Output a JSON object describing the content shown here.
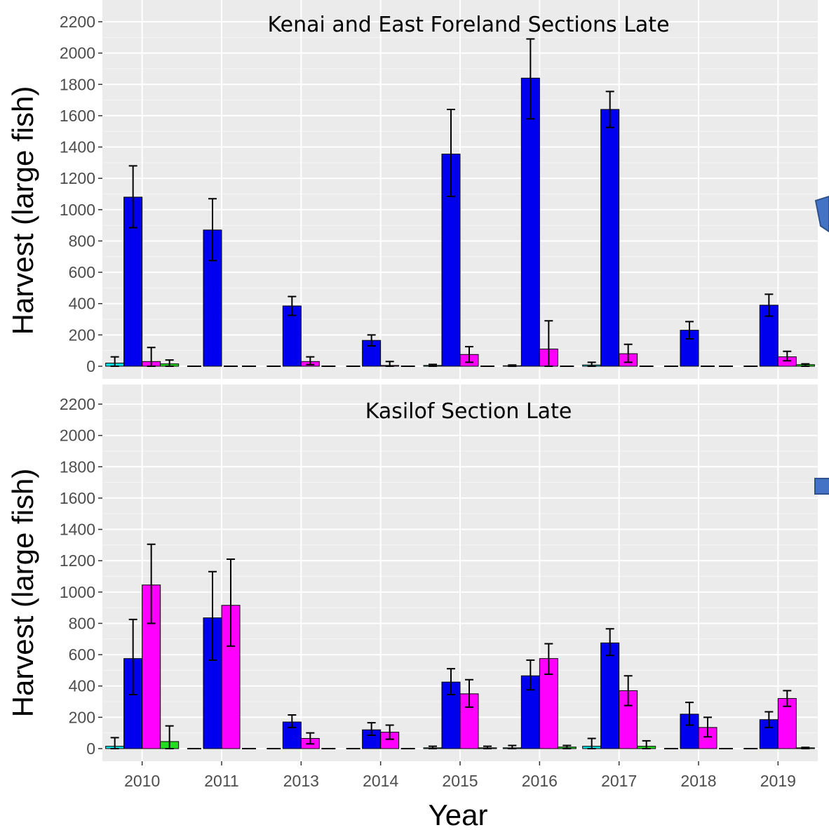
{
  "chart_data": [
    {
      "type": "bar",
      "title": "Kenai and East Foreland Sections Late",
      "xlabel": "",
      "ylabel": "Harvest (large fish)",
      "ylim": [
        0,
        2250
      ],
      "yticks": [
        0,
        200,
        400,
        600,
        800,
        1000,
        1200,
        1400,
        1600,
        1800,
        2000,
        2200
      ],
      "grid": true,
      "categories": [
        "2010",
        "2011",
        "2013",
        "2014",
        "2015",
        "2016",
        "2017",
        "2018",
        "2019"
      ],
      "series": [
        {
          "color": "#00e5e5",
          "values": [
            20,
            0,
            0,
            0,
            5,
            3,
            8,
            0,
            0
          ],
          "err_lo": [
            0,
            0,
            0,
            0,
            0,
            0,
            0,
            0,
            0
          ],
          "err_hi": [
            60,
            0,
            0,
            0,
            12,
            8,
            25,
            0,
            0
          ]
        },
        {
          "color": "#0000ee",
          "values": [
            1080,
            870,
            385,
            165,
            1355,
            1840,
            1640,
            230,
            390
          ],
          "err_lo": [
            885,
            675,
            325,
            130,
            1085,
            1580,
            1525,
            175,
            320
          ],
          "err_hi": [
            1280,
            1070,
            445,
            200,
            1640,
            2090,
            1755,
            285,
            460
          ]
        },
        {
          "color": "#ff00ff",
          "values": [
            30,
            0,
            30,
            5,
            75,
            110,
            80,
            0,
            60
          ],
          "err_lo": [
            0,
            0,
            10,
            0,
            25,
            0,
            25,
            0,
            35
          ],
          "err_hi": [
            120,
            0,
            60,
            30,
            125,
            290,
            140,
            0,
            95
          ]
        },
        {
          "color": "#22dd22",
          "values": [
            15,
            0,
            0,
            0,
            0,
            0,
            0,
            0,
            10
          ],
          "err_lo": [
            0,
            0,
            0,
            0,
            0,
            0,
            0,
            0,
            0
          ],
          "err_hi": [
            40,
            0,
            0,
            0,
            0,
            0,
            0,
            0,
            15
          ]
        }
      ]
    },
    {
      "type": "bar",
      "title": "Kasilof Section Late",
      "xlabel": "Year",
      "ylabel": "Harvest (large fish)",
      "ylim": [
        0,
        2250
      ],
      "yticks": [
        0,
        200,
        400,
        600,
        800,
        1000,
        1200,
        1400,
        1600,
        1800,
        2000,
        2200
      ],
      "grid": true,
      "categories": [
        "2010",
        "2011",
        "2013",
        "2014",
        "2015",
        "2016",
        "2017",
        "2018",
        "2019"
      ],
      "series": [
        {
          "color": "#00e5e5",
          "values": [
            15,
            0,
            0,
            0,
            5,
            5,
            15,
            0,
            0
          ],
          "err_lo": [
            0,
            0,
            0,
            0,
            0,
            0,
            0,
            0,
            0
          ],
          "err_hi": [
            70,
            0,
            0,
            0,
            15,
            20,
            65,
            0,
            0
          ]
        },
        {
          "color": "#0000ee",
          "values": [
            575,
            835,
            170,
            120,
            425,
            465,
            675,
            220,
            185
          ],
          "err_lo": [
            345,
            565,
            135,
            85,
            345,
            375,
            595,
            150,
            135
          ],
          "err_hi": [
            825,
            1130,
            215,
            165,
            510,
            565,
            765,
            295,
            235
          ]
        },
        {
          "color": "#ff00ff",
          "values": [
            1045,
            915,
            65,
            105,
            350,
            575,
            370,
            135,
            320
          ],
          "err_lo": [
            800,
            655,
            30,
            60,
            265,
            475,
            275,
            75,
            270
          ],
          "err_hi": [
            1305,
            1210,
            100,
            150,
            440,
            670,
            465,
            200,
            370
          ]
        },
        {
          "color": "#22dd22",
          "values": [
            45,
            0,
            0,
            0,
            5,
            10,
            15,
            0,
            5
          ],
          "err_lo": [
            0,
            0,
            0,
            0,
            0,
            0,
            0,
            0,
            0
          ],
          "err_hi": [
            145,
            0,
            0,
            0,
            15,
            20,
            50,
            0,
            8
          ]
        }
      ]
    }
  ]
}
